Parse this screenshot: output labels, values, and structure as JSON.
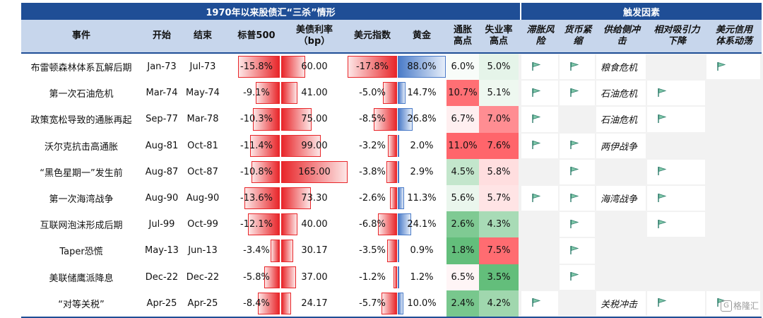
{
  "title_main": "1970年以来股债汇“三杀”情形",
  "title_trigger": "触发因素",
  "columns": {
    "event": "事件",
    "start": "开始",
    "end": "结束",
    "sp500": "标普500",
    "ust": "美债利率\n（bp）",
    "dxy": "美元指数",
    "gold": "黄金",
    "cpi": "通胀\n高点",
    "unemp": "失业率\n高点",
    "trig_stag": "滞胀风\n险",
    "trig_tight": "货币紧\n缩",
    "trig_supply": "供给侧冲\n击",
    "trig_relative": "相对吸引力\n下降",
    "trig_usd": "美元信用\n体系动荡"
  },
  "colors": {
    "header_dark": "#1f4e96",
    "header_light": "#c7d6ec",
    "bar_red": "#e8262a",
    "bar_blue": "#4a7bc8",
    "heat_red": "#f5656b",
    "heat_green": "#63be7b",
    "flag": "#2e7d6b"
  },
  "rows": [
    {
      "event": "布雷顿森林体系瓦解后期",
      "start": "Jan-73",
      "end": "Jul-73",
      "sp500": "-15.8%",
      "sp500_v": -15.8,
      "ust": "60.00",
      "ust_v": 60,
      "dxy": "-17.8%",
      "dxy_v": -17.8,
      "gold": "88.0%",
      "gold_v": 88.0,
      "cpi": "6.0%",
      "cpi_v": 6.0,
      "unemp": "5.0%",
      "unemp_v": 5.0,
      "trig": [
        true,
        true,
        false,
        false,
        true
      ],
      "crisis": "粮食危机"
    },
    {
      "event": "第一次石油危机",
      "start": "Mar-74",
      "end": "May-74",
      "sp500": "-9.1%",
      "sp500_v": -9.1,
      "ust": "41.00",
      "ust_v": 41,
      "dxy": "-5.0%",
      "dxy_v": -5.0,
      "gold": "14.7%",
      "gold_v": 14.7,
      "cpi": "10.7%",
      "cpi_v": 10.7,
      "unemp": "5.1%",
      "unemp_v": 5.1,
      "trig": [
        true,
        true,
        false,
        true,
        false
      ],
      "crisis": "石油危机"
    },
    {
      "event": "政策宽松导致的通胀再起",
      "start": "Sep-77",
      "end": "Mar-78",
      "sp500": "-10.3%",
      "sp500_v": -10.3,
      "ust": "75.00",
      "ust_v": 75,
      "dxy": "-8.5%",
      "dxy_v": -8.5,
      "gold": "26.8%",
      "gold_v": 26.8,
      "cpi": "6.7%",
      "cpi_v": 6.7,
      "unemp": "7.0%",
      "unemp_v": 7.0,
      "trig": [
        true,
        false,
        false,
        true,
        false
      ],
      "crisis": "石油危机"
    },
    {
      "event": "沃尔克抗击高通胀",
      "start": "Aug-81",
      "end": "Oct-81",
      "sp500": "-11.4%",
      "sp500_v": -11.4,
      "ust": "99.00",
      "ust_v": 99,
      "dxy": "-3.2%",
      "dxy_v": -3.2,
      "gold": "2.0%",
      "gold_v": 2.0,
      "cpi": "11.0%",
      "cpi_v": 11.0,
      "unemp": "7.6%",
      "unemp_v": 7.6,
      "trig": [
        true,
        true,
        false,
        false,
        false
      ],
      "crisis": "两伊战争"
    },
    {
      "event": "“黑色星期一”发生前",
      "start": "Aug-87",
      "end": "Oct-87",
      "sp500": "-10.8%",
      "sp500_v": -10.8,
      "ust": "165.00",
      "ust_v": 165,
      "dxy": "-3.8%",
      "dxy_v": -3.8,
      "gold": "2.9%",
      "gold_v": 2.9,
      "cpi": "4.5%",
      "cpi_v": 4.5,
      "unemp": "5.8%",
      "unemp_v": 5.8,
      "trig": [
        false,
        true,
        false,
        true,
        false
      ],
      "crisis": ""
    },
    {
      "event": "第一次海湾战争",
      "start": "Aug-90",
      "end": "Aug-90",
      "sp500": "-13.6%",
      "sp500_v": -13.6,
      "ust": "73.30",
      "ust_v": 73.3,
      "dxy": "-2.6%",
      "dxy_v": -2.6,
      "gold": "11.3%",
      "gold_v": 11.3,
      "cpi": "5.6%",
      "cpi_v": 5.6,
      "unemp": "5.7%",
      "unemp_v": 5.7,
      "trig": [
        true,
        true,
        false,
        true,
        false
      ],
      "crisis": "海湾战争"
    },
    {
      "event": "互联网泡沫形成后期",
      "start": "Jul-99",
      "end": "Oct-99",
      "sp500": "-12.1%",
      "sp500_v": -12.1,
      "ust": "40.00",
      "ust_v": 40,
      "dxy": "-6.8%",
      "dxy_v": -6.8,
      "gold": "24.1%",
      "gold_v": 24.1,
      "cpi": "2.6%",
      "cpi_v": 2.6,
      "unemp": "4.3%",
      "unemp_v": 4.3,
      "trig": [
        false,
        true,
        false,
        true,
        false
      ],
      "crisis": ""
    },
    {
      "event": "Taper恐慌",
      "start": "May-13",
      "end": "Jun-13",
      "sp500": "-3.4%",
      "sp500_v": -3.4,
      "ust": "30.17",
      "ust_v": 30.17,
      "dxy": "-3.5%",
      "dxy_v": -3.5,
      "gold": "0.9%",
      "gold_v": 0.9,
      "cpi": "1.8%",
      "cpi_v": 1.8,
      "unemp": "7.5%",
      "unemp_v": 7.5,
      "trig": [
        false,
        true,
        false,
        false,
        false
      ],
      "crisis": ""
    },
    {
      "event": "美联储鹰派降息",
      "start": "Dec-22",
      "end": "Dec-22",
      "sp500": "-5.8%",
      "sp500_v": -5.8,
      "ust": "37.00",
      "ust_v": 37,
      "dxy": "-1.2%",
      "dxy_v": -1.2,
      "gold": "1.2%",
      "gold_v": 1.2,
      "cpi": "6.5%",
      "cpi_v": 6.5,
      "unemp": "3.5%",
      "unemp_v": 3.5,
      "trig": [
        false,
        true,
        false,
        false,
        false
      ],
      "crisis": ""
    },
    {
      "event": "“对等关税”",
      "start": "Apr-25",
      "end": "Apr-25",
      "sp500": "-8.4%",
      "sp500_v": -8.4,
      "ust": "24.17",
      "ust_v": 24.17,
      "dxy": "-5.7%",
      "dxy_v": -5.7,
      "gold": "10.0%",
      "gold_v": 10.0,
      "cpi": "2.4%",
      "cpi_v": 2.4,
      "unemp": "4.2%",
      "unemp_v": 4.2,
      "trig": [
        true,
        false,
        false,
        true,
        true
      ],
      "crisis": "关税冲击"
    }
  ],
  "watermark": "格隆汇",
  "watermark_icon": "G"
}
